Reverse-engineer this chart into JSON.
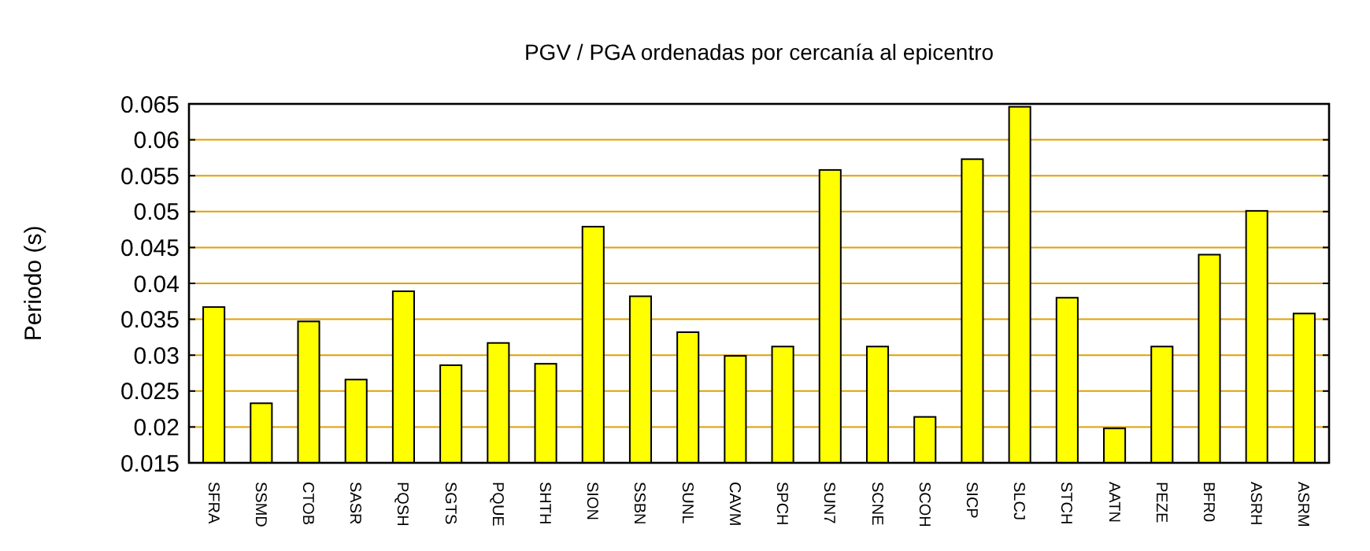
{
  "chart_data": {
    "type": "bar",
    "title": "PGV / PGA ordenadas por cercanía al epicentro",
    "ylabel": "Periodo (s)",
    "categories": [
      "SFRA",
      "SSMD",
      "CTOB",
      "SASR",
      "PQSH",
      "SGTS",
      "PQUE",
      "SHTH",
      "SION",
      "SSBN",
      "SUNL",
      "CAVM",
      "SPCH",
      "SUN7",
      "SCNE",
      "SCOH",
      "SICP",
      "SLCJ",
      "STCH",
      "AATN",
      "PEZE",
      "BFR0",
      "ASRH",
      "ASRM"
    ],
    "values": [
      0.0367,
      0.0233,
      0.0347,
      0.0266,
      0.0389,
      0.0286,
      0.0317,
      0.0288,
      0.0479,
      0.0382,
      0.0332,
      0.0299,
      0.0312,
      0.0558,
      0.0312,
      0.0214,
      0.0573,
      0.0646,
      0.038,
      0.0198,
      0.0312,
      0.044,
      0.0501,
      0.0358
    ],
    "color": "#ffff00",
    "ylim": [
      0.015,
      0.065
    ],
    "yticks": [
      0.015,
      0.02,
      0.025,
      0.03,
      0.035,
      0.04,
      0.045,
      0.05,
      0.055,
      0.06,
      0.065
    ],
    "grid": "y"
  }
}
